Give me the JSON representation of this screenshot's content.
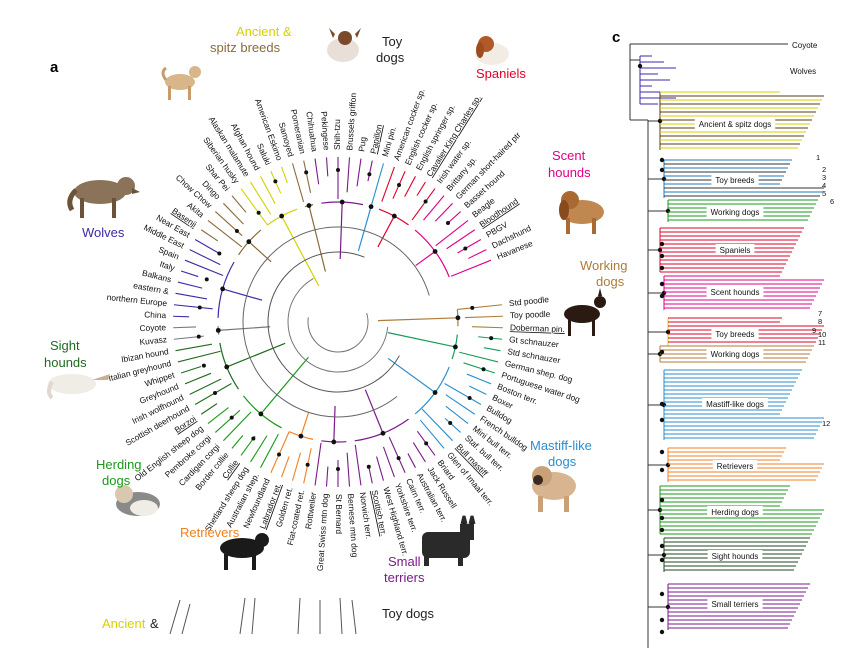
{
  "panel_a": {
    "label": "a",
    "groups": [
      {
        "id": "ancient",
        "text": "Ancient &",
        "text2": "spitz breeds",
        "color": "#d7d100",
        "color2": "#8b6b3a"
      },
      {
        "id": "toy",
        "text": "Toy",
        "text2": "dogs",
        "color": "#222222"
      },
      {
        "id": "spaniels",
        "text": "Spaniels",
        "color": "#e0002a"
      },
      {
        "id": "scent",
        "text": "Scent",
        "text2": "hounds",
        "color": "#e0008a"
      },
      {
        "id": "working",
        "text": "Working",
        "text2": "dogs",
        "color": "#b07a3a"
      },
      {
        "id": "wolves",
        "text": "Wolves",
        "color": "#3a2aa8"
      },
      {
        "id": "sight",
        "text": "Sight",
        "text2": "hounds",
        "color": "#1f6b1f"
      },
      {
        "id": "herding",
        "text": "Herding",
        "text2": "dogs",
        "color": "#1a9a1a"
      },
      {
        "id": "retrievers",
        "text": "Retrievers",
        "color": "#f08020"
      },
      {
        "id": "mastiff",
        "text": "Mastiff-like",
        "text2": "dogs",
        "color": "#2a8ed0"
      },
      {
        "id": "terriers",
        "text": "Small",
        "text2": "terriers",
        "color": "#7a1a8a"
      }
    ],
    "leaves": [
      "Std poodle",
      "Toy poodle",
      "Doberman pin.",
      "Gt schnauzer",
      "Std schnauzer",
      "German shep. dog",
      "Portuguese water dog",
      "Boston terr.",
      "Boxer",
      "Bulldog",
      "French bulldog",
      "Mini bull terr.",
      "Staf. bull terr.",
      "Bull mastiff",
      "Glen of Imaal terr.",
      "Briard",
      "Jack Russell",
      "Australian terr.",
      "Cairn terr.",
      "Yorkshire terr.",
      "West Highland terr.",
      "Scottish terr.",
      "Norwich terr.",
      "Bernese mtn dog",
      "St Bernard",
      "Great Swiss mtn dog",
      "Rottweiler",
      "Flat-coated ret.",
      "Golden ret.",
      "Labrador ret.",
      "Newfoundland",
      "Australian shep.",
      "Shetland sheep dog",
      "Collie",
      "Border collie",
      "Cardigan corgi",
      "Pembroke corgi",
      "Old English sheep dog",
      "Borzoi",
      "Scottish deerhound",
      "Irish wolfhound",
      "Greyhound",
      "Whippet",
      "Italian greyhound",
      "Ibizan hound",
      "Kuvasz",
      "Coyote",
      "China",
      "northern Europe",
      "eastern &",
      "Balkans",
      "Italy",
      "Spain",
      "Middle East",
      "Near East",
      "Basenji",
      "Akita",
      "Chow Chow",
      "Dingo",
      "Shar Pei",
      "Siberian husky",
      "Alaskan malamute",
      "Afghan hound",
      "Saluki",
      "American Eskimo",
      "Samoyed",
      "Pomeranian",
      "Chihuahua",
      "Pekingese",
      "Shih-tzu",
      "Brussels griffon",
      "Pug",
      "Papillon",
      "Mini pin.",
      "American cocker sp.",
      "English cocker sp.",
      "English springer sp.",
      "Cavalier King Charles sp.",
      "Irish water sp.",
      "Brittany sp.",
      "German short-haired ptr",
      "Basset hound",
      "Beagle",
      "Bloodhound",
      "PBGV",
      "Dachshund",
      "Havanese"
    ],
    "underlined": [
      "Basenji",
      "Bloodhound",
      "Doberman pin.",
      "Borzoi",
      "Collie",
      "Labrador ret.",
      "Bull mastiff",
      "Scottish terr.",
      "Papillon",
      "Cavalier King Charles sp."
    ]
  },
  "panel_c": {
    "label": "c",
    "top_labels": [
      "Coyote",
      "Wolves"
    ],
    "clades": [
      {
        "text": "Ancient & spitz dogs",
        "color": "#5a3a1a"
      },
      {
        "text": "Toy breeds",
        "color": "#1f7ac0"
      },
      {
        "text": "Working dogs",
        "color": "#1a9a1a"
      },
      {
        "text": "Spaniels",
        "color": "#e0002a"
      },
      {
        "text": "Scent hounds",
        "color": "#e0008a"
      },
      {
        "text": "Toy breeds",
        "color": "#d7d100"
      },
      {
        "text": "Working dogs",
        "color": "#b07a3a"
      },
      {
        "text": "Mastiff-like dogs",
        "color": "#2a8ed0"
      },
      {
        "text": "Retrievers",
        "color": "#f08020"
      },
      {
        "text": "Herding dogs",
        "color": "#1a9a1a"
      },
      {
        "text": "Sight hounds",
        "color": "#1f4a1f"
      },
      {
        "text": "Small terriers",
        "color": "#7a1a8a"
      }
    ],
    "numbers": [
      "1",
      "2",
      "3",
      "4",
      "5",
      "6",
      "7",
      "8",
      "9",
      "10",
      "11",
      "12"
    ]
  },
  "bottom_strip": {
    "ancient": "Ancient",
    "amp": "&",
    "toy": "Toy dogs"
  }
}
